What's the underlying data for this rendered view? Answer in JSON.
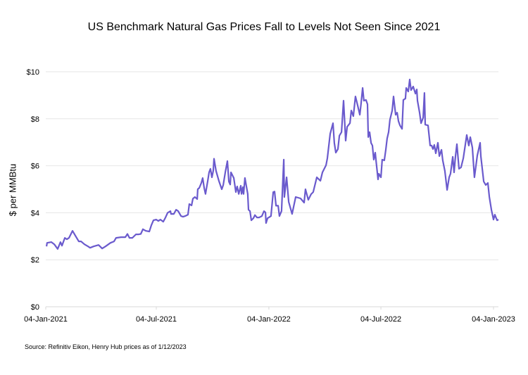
{
  "chart_data": {
    "type": "line",
    "title": "US Benchmark Natural Gas Prices Fall to Levels Not Seen Since 2021",
    "xlabel": "",
    "ylabel": "$ per MMBtu",
    "source": "Source: Refinitiv Eikon, Henry Hub prices as of 1/12/2023",
    "x_units": "months since 04-Jan-2021 (approx.)",
    "ylim": [
      0,
      10
    ],
    "xlim": [
      0,
      24
    ],
    "grid": true,
    "line_color": "#6a5acd",
    "y_ticks": [
      {
        "value": 0,
        "label": "$0"
      },
      {
        "value": 2,
        "label": "$2"
      },
      {
        "value": 4,
        "label": "$4"
      },
      {
        "value": 6,
        "label": "$6"
      },
      {
        "value": 8,
        "label": "$8"
      },
      {
        "value": 10,
        "label": "$10"
      }
    ],
    "x_ticks": [
      {
        "value": 0,
        "label": "04-Jan-2021"
      },
      {
        "value": 5.86,
        "label": "04-Jul-2021"
      },
      {
        "value": 11.83,
        "label": "04-Jan-2022"
      },
      {
        "value": 17.77,
        "label": "04-Jul-2022"
      },
      {
        "value": 23.74,
        "label": "04-Jan-2023"
      }
    ],
    "series": [
      {
        "name": "Henry Hub",
        "points": [
          [
            0.04,
            2.57
          ],
          [
            0.07,
            2.72
          ],
          [
            0.3,
            2.75
          ],
          [
            0.45,
            2.66
          ],
          [
            0.63,
            2.46
          ],
          [
            0.78,
            2.75
          ],
          [
            0.86,
            2.6
          ],
          [
            1.01,
            2.93
          ],
          [
            1.12,
            2.87
          ],
          [
            1.23,
            2.93
          ],
          [
            1.42,
            3.23
          ],
          [
            1.57,
            3.02
          ],
          [
            1.75,
            2.78
          ],
          [
            1.87,
            2.78
          ],
          [
            2.05,
            2.66
          ],
          [
            2.24,
            2.57
          ],
          [
            2.35,
            2.51
          ],
          [
            2.54,
            2.57
          ],
          [
            2.8,
            2.63
          ],
          [
            2.99,
            2.48
          ],
          [
            3.17,
            2.57
          ],
          [
            3.43,
            2.72
          ],
          [
            3.62,
            2.78
          ],
          [
            3.73,
            2.93
          ],
          [
            3.99,
            2.96
          ],
          [
            4.22,
            2.96
          ],
          [
            4.33,
            3.1
          ],
          [
            4.44,
            2.93
          ],
          [
            4.59,
            2.93
          ],
          [
            4.78,
            3.08
          ],
          [
            4.93,
            3.08
          ],
          [
            5.04,
            3.1
          ],
          [
            5.15,
            3.3
          ],
          [
            5.3,
            3.23
          ],
          [
            5.49,
            3.2
          ],
          [
            5.6,
            3.47
          ],
          [
            5.71,
            3.68
          ],
          [
            5.86,
            3.71
          ],
          [
            5.97,
            3.65
          ],
          [
            6.08,
            3.71
          ],
          [
            6.23,
            3.62
          ],
          [
            6.35,
            3.8
          ],
          [
            6.46,
            4.0
          ],
          [
            6.61,
            4.07
          ],
          [
            6.64,
            3.95
          ],
          [
            6.79,
            3.95
          ],
          [
            6.91,
            4.13
          ],
          [
            7.02,
            4.07
          ],
          [
            7.17,
            3.86
          ],
          [
            7.28,
            3.83
          ],
          [
            7.39,
            3.86
          ],
          [
            7.54,
            3.92
          ],
          [
            7.61,
            4.37
          ],
          [
            7.73,
            4.31
          ],
          [
            7.8,
            4.6
          ],
          [
            7.91,
            4.67
          ],
          [
            8.03,
            4.58
          ],
          [
            8.06,
            5.0
          ],
          [
            8.14,
            5.06
          ],
          [
            8.25,
            5.27
          ],
          [
            8.32,
            5.48
          ],
          [
            8.4,
            5.06
          ],
          [
            8.47,
            4.8
          ],
          [
            8.59,
            5.36
          ],
          [
            8.66,
            5.72
          ],
          [
            8.73,
            5.87
          ],
          [
            8.81,
            5.51
          ],
          [
            8.88,
            5.78
          ],
          [
            8.92,
            6.3
          ],
          [
            9.03,
            5.78
          ],
          [
            9.18,
            5.36
          ],
          [
            9.33,
            5.0
          ],
          [
            9.41,
            5.18
          ],
          [
            9.52,
            5.72
          ],
          [
            9.63,
            6.2
          ],
          [
            9.71,
            5.33
          ],
          [
            9.78,
            5.2
          ],
          [
            9.82,
            5.72
          ],
          [
            9.97,
            5.48
          ],
          [
            10.08,
            4.88
          ],
          [
            10.15,
            5.12
          ],
          [
            10.23,
            4.8
          ],
          [
            10.34,
            5.15
          ],
          [
            10.38,
            4.8
          ],
          [
            10.45,
            5.09
          ],
          [
            10.49,
            4.8
          ],
          [
            10.56,
            5.48
          ],
          [
            10.71,
            4.8
          ],
          [
            10.75,
            4.13
          ],
          [
            10.83,
            4.07
          ],
          [
            10.9,
            3.68
          ],
          [
            11.01,
            3.77
          ],
          [
            11.09,
            3.9
          ],
          [
            11.2,
            3.8
          ],
          [
            11.31,
            3.8
          ],
          [
            11.46,
            3.86
          ],
          [
            11.57,
            4.07
          ],
          [
            11.65,
            4.01
          ],
          [
            11.68,
            3.56
          ],
          [
            11.76,
            3.77
          ],
          [
            11.83,
            3.8
          ],
          [
            11.94,
            3.86
          ],
          [
            12.06,
            4.88
          ],
          [
            12.13,
            4.9
          ],
          [
            12.21,
            4.3
          ],
          [
            12.32,
            4.3
          ],
          [
            12.39,
            3.86
          ],
          [
            12.5,
            4.07
          ],
          [
            12.62,
            6.26
          ],
          [
            12.65,
            4.67
          ],
          [
            12.77,
            5.51
          ],
          [
            12.88,
            4.46
          ],
          [
            13.06,
            3.95
          ],
          [
            13.25,
            4.67
          ],
          [
            13.51,
            4.61
          ],
          [
            13.7,
            4.43
          ],
          [
            13.77,
            5.0
          ],
          [
            13.92,
            4.55
          ],
          [
            14.07,
            4.79
          ],
          [
            14.18,
            4.88
          ],
          [
            14.37,
            5.51
          ],
          [
            14.56,
            5.36
          ],
          [
            14.67,
            5.72
          ],
          [
            14.86,
            6.02
          ],
          [
            14.93,
            6.32
          ],
          [
            15.08,
            7.36
          ],
          [
            15.23,
            7.81
          ],
          [
            15.3,
            6.97
          ],
          [
            15.38,
            6.56
          ],
          [
            15.49,
            6.71
          ],
          [
            15.57,
            7.28
          ],
          [
            15.68,
            7.43
          ],
          [
            15.79,
            8.77
          ],
          [
            15.9,
            7.07
          ],
          [
            15.98,
            7.66
          ],
          [
            16.13,
            7.81
          ],
          [
            16.2,
            8.35
          ],
          [
            16.31,
            8.11
          ],
          [
            16.42,
            8.95
          ],
          [
            16.54,
            8.56
          ],
          [
            16.65,
            8.17
          ],
          [
            16.72,
            8.65
          ],
          [
            16.8,
            9.31
          ],
          [
            16.87,
            8.77
          ],
          [
            16.98,
            8.8
          ],
          [
            17.06,
            8.62
          ],
          [
            17.1,
            7.22
          ],
          [
            17.17,
            7.43
          ],
          [
            17.25,
            6.97
          ],
          [
            17.32,
            6.86
          ],
          [
            17.39,
            6.26
          ],
          [
            17.47,
            6.56
          ],
          [
            17.51,
            6.23
          ],
          [
            17.62,
            5.42
          ],
          [
            17.66,
            5.66
          ],
          [
            17.77,
            5.51
          ],
          [
            17.84,
            6.26
          ],
          [
            17.95,
            6.23
          ],
          [
            18.03,
            6.68
          ],
          [
            18.1,
            7.16
          ],
          [
            18.18,
            7.43
          ],
          [
            18.25,
            7.96
          ],
          [
            18.37,
            8.35
          ],
          [
            18.44,
            8.95
          ],
          [
            18.55,
            8.17
          ],
          [
            18.63,
            8.26
          ],
          [
            18.7,
            7.9
          ],
          [
            18.78,
            7.72
          ],
          [
            18.89,
            7.57
          ],
          [
            18.96,
            8.8
          ],
          [
            19.07,
            8.86
          ],
          [
            19.11,
            9.31
          ],
          [
            19.22,
            9.16
          ],
          [
            19.3,
            9.67
          ],
          [
            19.37,
            9.22
          ],
          [
            19.48,
            9.37
          ],
          [
            19.6,
            9.07
          ],
          [
            19.67,
            9.25
          ],
          [
            19.71,
            8.77
          ],
          [
            19.82,
            8.26
          ],
          [
            19.9,
            7.81
          ],
          [
            20.01,
            8.05
          ],
          [
            20.08,
            9.1
          ],
          [
            20.12,
            7.75
          ],
          [
            20.27,
            7.72
          ],
          [
            20.38,
            6.86
          ],
          [
            20.46,
            6.86
          ],
          [
            20.53,
            6.71
          ],
          [
            20.6,
            6.89
          ],
          [
            20.68,
            6.53
          ],
          [
            20.79,
            6.98
          ],
          [
            20.87,
            6.41
          ],
          [
            20.98,
            6.68
          ],
          [
            21.05,
            6.23
          ],
          [
            21.16,
            5.78
          ],
          [
            21.28,
            4.97
          ],
          [
            21.39,
            5.51
          ],
          [
            21.46,
            5.66
          ],
          [
            21.58,
            6.38
          ],
          [
            21.65,
            5.72
          ],
          [
            21.72,
            6.38
          ],
          [
            21.8,
            6.92
          ],
          [
            21.91,
            5.87
          ],
          [
            22.02,
            5.93
          ],
          [
            22.14,
            6.32
          ],
          [
            22.32,
            7.31
          ],
          [
            22.43,
            6.86
          ],
          [
            22.51,
            7.22
          ],
          [
            22.62,
            6.77
          ],
          [
            22.73,
            5.51
          ],
          [
            22.88,
            6.44
          ],
          [
            23.03,
            6.98
          ],
          [
            23.07,
            6.41
          ],
          [
            23.22,
            5.33
          ],
          [
            23.33,
            5.18
          ],
          [
            23.44,
            5.27
          ],
          [
            23.52,
            4.67
          ],
          [
            23.63,
            4.13
          ],
          [
            23.74,
            3.71
          ],
          [
            23.81,
            3.92
          ],
          [
            23.93,
            3.68
          ],
          [
            24.0,
            3.71
          ]
        ]
      }
    ]
  }
}
